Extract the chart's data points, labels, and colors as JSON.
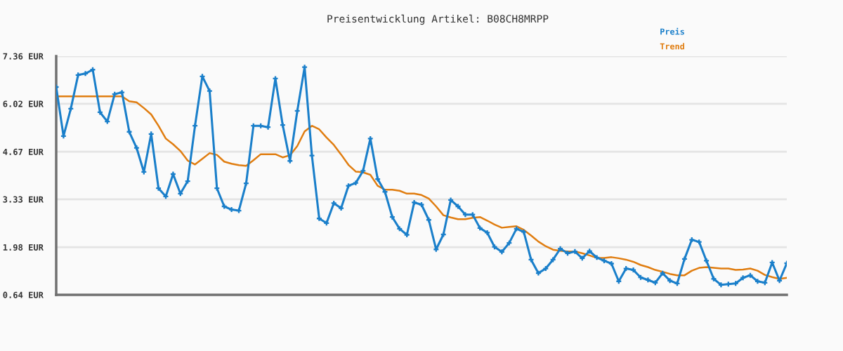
{
  "chart_data": {
    "type": "line",
    "title": "Preisentwicklung Artikel: B08CH8MRPP",
    "categories": [
      null,
      null,
      null,
      null,
      null,
      null,
      null,
      null,
      null,
      null,
      null,
      null,
      null,
      null,
      null,
      null,
      null,
      null,
      null,
      null,
      null,
      null,
      null,
      null,
      null,
      null,
      null,
      null,
      null,
      null,
      null,
      null,
      null,
      null,
      null,
      null,
      null,
      null,
      null,
      null,
      null,
      null,
      null,
      null,
      null,
      null,
      null,
      null,
      null,
      null,
      null,
      null,
      null,
      null,
      null,
      null,
      null,
      null,
      null,
      null,
      null,
      null,
      null,
      null,
      null,
      null,
      null,
      null,
      null,
      null,
      null,
      null,
      null,
      null,
      null,
      null,
      null,
      null,
      null,
      null,
      null,
      null,
      null,
      null,
      null,
      null,
      null,
      null,
      null,
      null,
      null,
      null,
      null,
      null,
      null,
      null,
      null,
      null,
      null,
      null,
      null
    ],
    "series": [
      {
        "name": "Preis",
        "color": "#1a7fca",
        "marker": "cross",
        "values": [
          6.49,
          5.11,
          5.88,
          6.83,
          6.87,
          6.98,
          5.78,
          5.52,
          6.29,
          6.34,
          5.23,
          4.78,
          4.1,
          5.17,
          3.64,
          3.41,
          4.04,
          3.49,
          3.84,
          5.4,
          6.79,
          6.38,
          3.64,
          3.13,
          3.04,
          3.01,
          3.78,
          5.4,
          5.4,
          5.36,
          6.73,
          5.42,
          4.41,
          5.82,
          7.05,
          4.56,
          2.79,
          2.66,
          3.22,
          3.08,
          3.71,
          3.79,
          4.13,
          5.04,
          3.9,
          3.54,
          2.83,
          2.5,
          2.33,
          3.24,
          3.18,
          2.75,
          1.92,
          2.34,
          3.31,
          3.13,
          2.9,
          2.9,
          2.52,
          2.39,
          1.99,
          1.85,
          2.1,
          2.5,
          2.41,
          1.63,
          1.25,
          1.38,
          1.63,
          1.94,
          1.81,
          1.86,
          1.67,
          1.87,
          1.69,
          1.6,
          1.52,
          1.02,
          1.38,
          1.34,
          1.13,
          1.06,
          0.98,
          1.25,
          1.04,
          0.96,
          1.65,
          2.19,
          2.13,
          1.6,
          1.09,
          0.92,
          0.94,
          0.96,
          1.12,
          1.19,
          1.02,
          0.98,
          1.55,
          1.04,
          1.53
        ]
      },
      {
        "name": "Trend",
        "color": "#e07d10",
        "marker": "none",
        "values": [
          6.23,
          6.23,
          6.23,
          6.23,
          6.23,
          6.23,
          6.23,
          6.23,
          6.23,
          6.23,
          6.09,
          6.06,
          5.9,
          5.72,
          5.4,
          5.04,
          4.88,
          4.69,
          4.42,
          4.31,
          4.47,
          4.63,
          4.58,
          4.39,
          4.33,
          4.29,
          4.27,
          4.43,
          4.6,
          4.6,
          4.6,
          4.51,
          4.57,
          4.83,
          5.24,
          5.4,
          5.3,
          5.07,
          4.86,
          4.59,
          4.3,
          4.11,
          4.09,
          4.02,
          3.71,
          3.6,
          3.6,
          3.57,
          3.49,
          3.49,
          3.45,
          3.35,
          3.13,
          2.88,
          2.82,
          2.77,
          2.77,
          2.81,
          2.83,
          2.73,
          2.62,
          2.53,
          2.55,
          2.57,
          2.47,
          2.31,
          2.14,
          2.01,
          1.91,
          1.88,
          1.86,
          1.86,
          1.81,
          1.75,
          1.68,
          1.68,
          1.7,
          1.67,
          1.63,
          1.57,
          1.48,
          1.42,
          1.34,
          1.29,
          1.23,
          1.19,
          1.19,
          1.32,
          1.4,
          1.42,
          1.4,
          1.38,
          1.38,
          1.34,
          1.35,
          1.38,
          1.32,
          1.2,
          1.14,
          1.09,
          1.12
        ]
      }
    ],
    "ylim": [
      0.64,
      7.36
    ],
    "yticks": [
      {
        "value": 0.64,
        "label": "0.64 EUR"
      },
      {
        "value": 1.98,
        "label": "1.98 EUR"
      },
      {
        "value": 3.33,
        "label": "3.33 EUR"
      },
      {
        "value": 4.67,
        "label": "4.67 EUR"
      },
      {
        "value": 6.02,
        "label": "6.02 EUR"
      },
      {
        "value": 7.36,
        "label": "7.36 EUR"
      }
    ],
    "grid": "y",
    "legend": "top right",
    "tick_labels": "y"
  }
}
